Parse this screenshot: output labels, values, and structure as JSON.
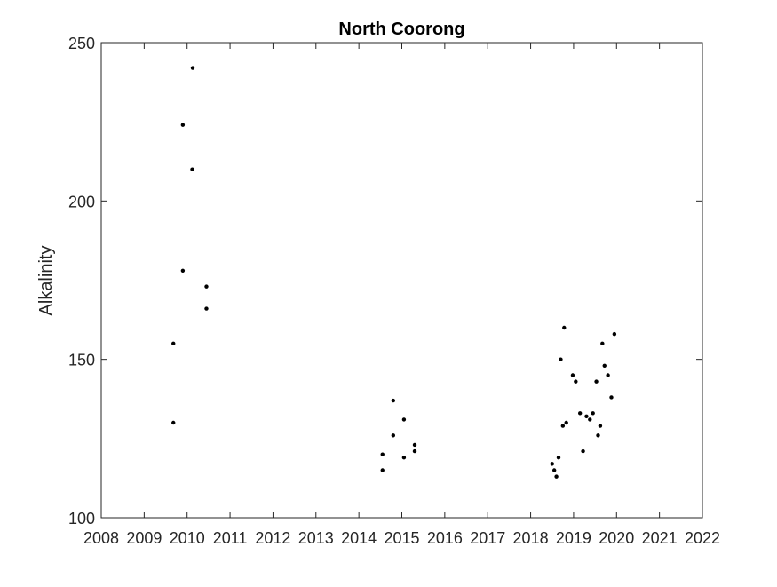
{
  "chart_data": {
    "type": "scatter",
    "title": "North Coorong",
    "xlabel": "",
    "ylabel": "Alkalinity",
    "xlim": [
      2008,
      2022
    ],
    "ylim": [
      100,
      250
    ],
    "x_ticks": [
      2008,
      2009,
      2010,
      2011,
      2012,
      2013,
      2014,
      2015,
      2016,
      2017,
      2018,
      2019,
      2020,
      2021,
      2022
    ],
    "y_ticks": [
      100,
      150,
      200,
      250
    ],
    "x_tick_labels": [
      "2008",
      "2009",
      "2010",
      "2011",
      "2012",
      "2013",
      "2014",
      "2015",
      "2016",
      "2017",
      "2018",
      "2019",
      "2020",
      "2021",
      "2022"
    ],
    "y_tick_labels": [
      "100",
      "150",
      "200",
      "250"
    ],
    "grid": false,
    "marker_color": "#000000",
    "axis_color": "#262626",
    "series": [
      {
        "points": [
          [
            2009.68,
            130
          ],
          [
            2009.68,
            155
          ],
          [
            2009.9,
            178
          ],
          [
            2009.9,
            224
          ],
          [
            2010.12,
            210
          ],
          [
            2010.13,
            242
          ],
          [
            2010.45,
            173
          ],
          [
            2010.45,
            166
          ],
          [
            2014.55,
            115
          ],
          [
            2014.55,
            120
          ],
          [
            2014.8,
            126
          ],
          [
            2014.8,
            137
          ],
          [
            2015.05,
            119
          ],
          [
            2015.05,
            131
          ],
          [
            2015.3,
            121
          ],
          [
            2015.3,
            123
          ],
          [
            2018.5,
            117
          ],
          [
            2018.55,
            115
          ],
          [
            2018.6,
            113
          ],
          [
            2018.65,
            119
          ],
          [
            2018.7,
            150
          ],
          [
            2018.75,
            129
          ],
          [
            2018.78,
            160
          ],
          [
            2018.83,
            130
          ],
          [
            2018.98,
            145
          ],
          [
            2019.05,
            143
          ],
          [
            2019.15,
            133
          ],
          [
            2019.22,
            121
          ],
          [
            2019.3,
            132
          ],
          [
            2019.38,
            131
          ],
          [
            2019.45,
            133
          ],
          [
            2019.53,
            143
          ],
          [
            2019.57,
            126
          ],
          [
            2019.62,
            129
          ],
          [
            2019.67,
            155
          ],
          [
            2019.72,
            148
          ],
          [
            2019.8,
            145
          ],
          [
            2019.88,
            138
          ],
          [
            2019.95,
            158
          ]
        ]
      }
    ]
  }
}
